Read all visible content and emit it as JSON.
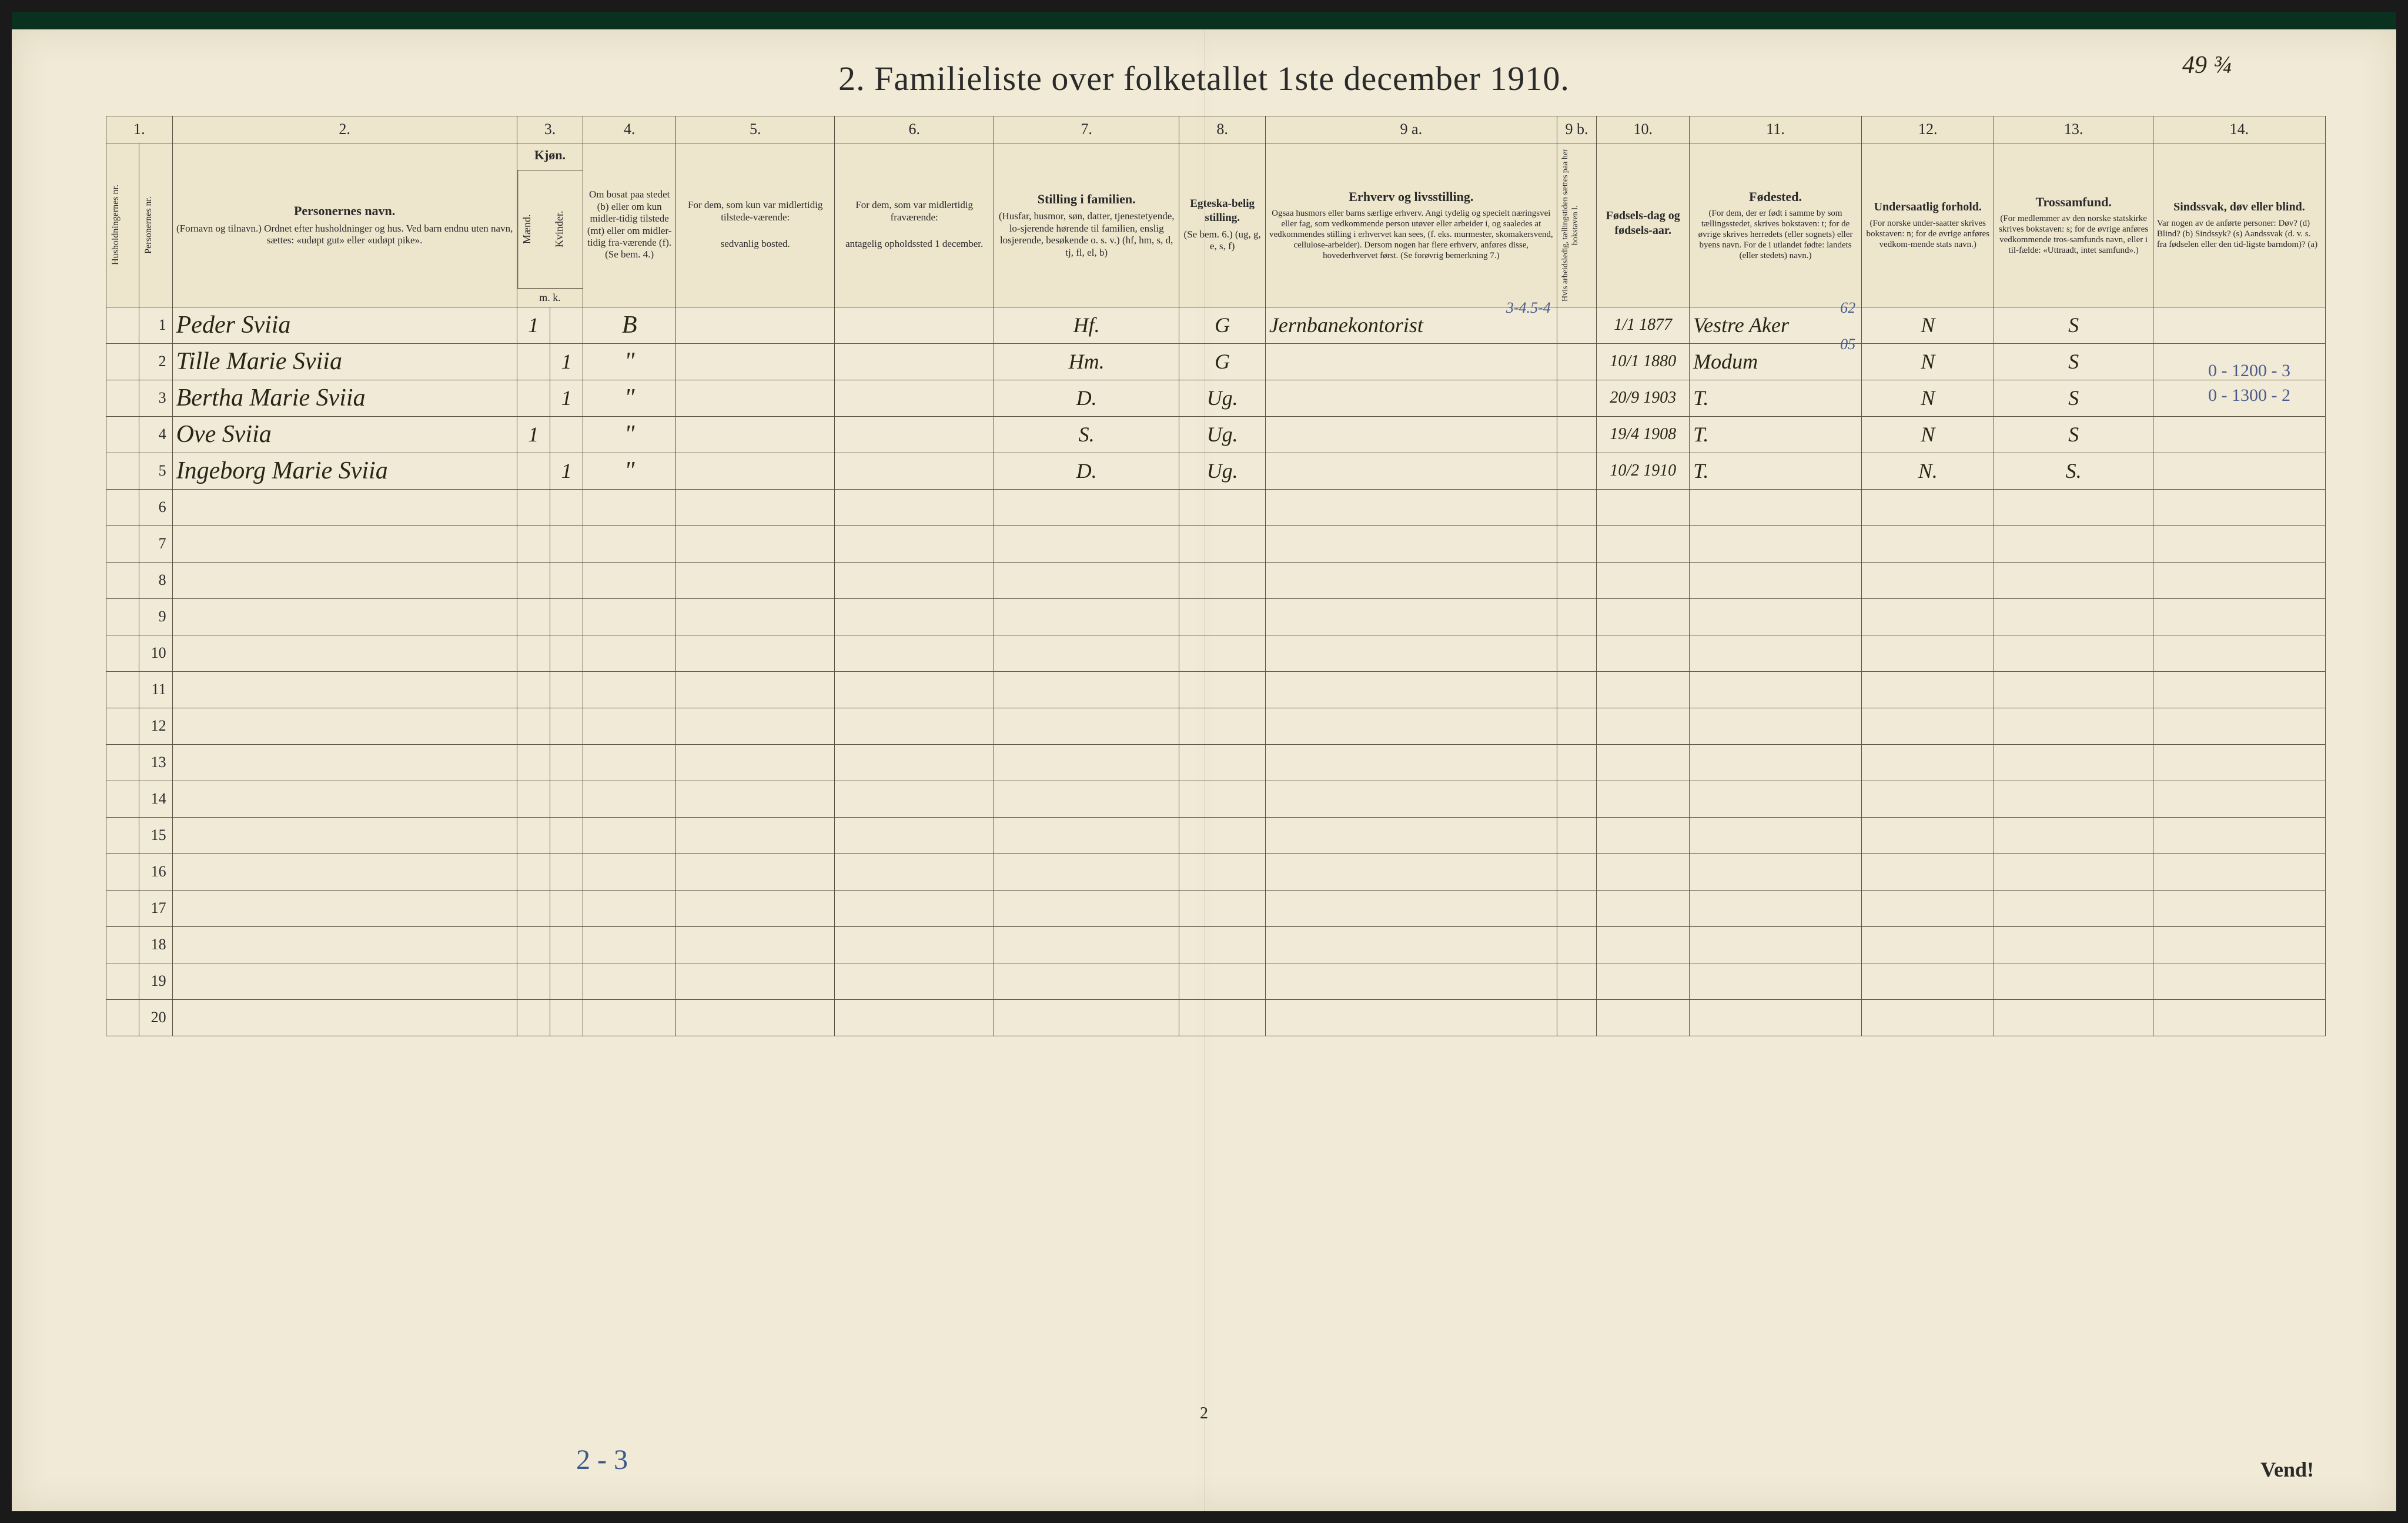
{
  "title": "2.  Familieliste over folketallet 1ste december 1910.",
  "page_annotation": "49 ¾",
  "footer_note": "2 - 3",
  "page_num_bottom": "2",
  "vend": "Vend!",
  "margin_annotations": [
    "0 - 1200 - 3",
    "0 - 1300 - 2"
  ],
  "colors": {
    "paper": "#f0ead6",
    "ink": "#2a2a2a",
    "handwriting": "#2a2418",
    "blue_pencil": "#3a5a8a",
    "border": "#5a5040"
  },
  "column_numbers": [
    "1.",
    "2.",
    "3.",
    "4.",
    "5.",
    "6.",
    "7.",
    "8.",
    "9 a.",
    "9 b.",
    "10.",
    "11.",
    "12.",
    "13.",
    "14."
  ],
  "headers": {
    "c1": "Husholdningernes nr.",
    "c1b": "Personernes nr.",
    "c2_title": "Personernes navn.",
    "c2_sub": "(Fornavn og tilnavn.)\nOrdnet efter husholdninger og hus.\nVed barn endnu uten navn, sættes: «udøpt gut» eller «udøpt pike».",
    "c3_title": "Kjøn.",
    "c3a": "Mænd.",
    "c3b": "Kvinder.",
    "c3_sub": "m.  k.",
    "c4_title": "Om bosat paa stedet (b) eller om kun midler-tidig tilstede (mt) eller om midler-tidig fra-værende (f).",
    "c4_sub": "(Se bem. 4.)",
    "c5_title": "For dem, som kun var midlertidig tilstede-værende:",
    "c5_sub": "sedvanlig bosted.",
    "c6_title": "For dem, som var midlertidig fraværende:",
    "c6_sub": "antagelig opholdssted 1 december.",
    "c7_title": "Stilling i familien.",
    "c7_sub": "(Husfar, husmor, søn, datter, tjenestetyende, lo-sjerende hørende til familien, enslig losjerende, besøkende o. s. v.)\n(hf, hm, s, d, tj, fl, el, b)",
    "c8_title": "Egteska-belig stilling.",
    "c8_sub": "(Se bem. 6.)\n(ug, g, e, s, f)",
    "c9a_title": "Erhverv og livsstilling.",
    "c9a_sub": "Ogsaa husmors eller barns særlige erhverv. Angi tydelig og specielt næringsvei eller fag, som vedkommende person utøver eller arbeider i, og saaledes at vedkommendes stilling i erhvervet kan sees, (f. eks. murmester, skomakersvend, cellulose-arbeider). Dersom nogen har flere erhverv, anføres disse, hovederhvervet først.\n(Se forøvrig bemerkning 7.)",
    "c9b_title": "Hvis arbeidsledig, tællingstiden sættes paa her bokstaven l.",
    "c10_title": "Fødsels-dag og fødsels-aar.",
    "c11_title": "Fødested.",
    "c11_sub": "(For dem, der er født i samme by som tællingsstedet, skrives bokstaven: t; for de øvrige skrives herredets (eller sognets) eller byens navn. For de i utlandet fødte: landets (eller stedets) navn.)",
    "c12_title": "Undersaatlig forhold.",
    "c12_sub": "(For norske under-saatter skrives bokstaven: n; for de øvrige anføres vedkom-mende stats navn.)",
    "c13_title": "Trossamfund.",
    "c13_sub": "(For medlemmer av den norske statskirke skrives bokstaven: s; for de øvrige anføres vedkommende tros-samfunds navn, eller i til-fælde: «Uttraadt, intet samfund».)",
    "c14_title": "Sindssvak, døv eller blind.",
    "c14_sub": "Var nogen av de anførte personer:\nDøv?        (d)\nBlind?       (b)\nSindssyk?  (s)\nAandssvak (d. v. s. fra fødselen eller den tid-ligste barndom)?  (a)"
  },
  "rows": [
    {
      "num": "1",
      "name": "Peder Sviia",
      "m": "1",
      "k": "",
      "c4": "B",
      "c7": "Hf.",
      "c8": "G",
      "c9a": "Jernbanekontorist",
      "c10": "1/1 1877",
      "c11": "Vestre Aker",
      "c12": "N",
      "c13": "S",
      "anno": "3-4.5-4",
      "anno2": "62"
    },
    {
      "num": "2",
      "name": "Tille Marie Sviia",
      "m": "",
      "k": "1",
      "c4": "\"",
      "c7": "Hm.",
      "c8": "G",
      "c9a": "",
      "c10": "10/1 1880",
      "c11": "Modum",
      "c12": "N",
      "c13": "S",
      "anno2": "05"
    },
    {
      "num": "3",
      "name": "Bertha Marie Sviia",
      "m": "",
      "k": "1",
      "c4": "\"",
      "c7": "D.",
      "c8": "Ug.",
      "c9a": "",
      "c10": "20/9 1903",
      "c11": "T.",
      "c12": "N",
      "c13": "S"
    },
    {
      "num": "4",
      "name": "Ove Sviia",
      "m": "1",
      "k": "",
      "c4": "\"",
      "c7": "S.",
      "c8": "Ug.",
      "c9a": "",
      "c10": "19/4 1908",
      "c11": "T.",
      "c12": "N",
      "c13": "S"
    },
    {
      "num": "5",
      "name": "Ingeborg Marie Sviia",
      "m": "",
      "k": "1",
      "c4": "\"",
      "c7": "D.",
      "c8": "Ug.",
      "c9a": "",
      "c10": "10/2 1910",
      "c11": "T.",
      "c12": "N.",
      "c13": "S."
    }
  ],
  "empty_rows": [
    "6",
    "7",
    "8",
    "9",
    "10",
    "11",
    "12",
    "13",
    "14",
    "15",
    "16",
    "17",
    "18",
    "19",
    "20"
  ]
}
